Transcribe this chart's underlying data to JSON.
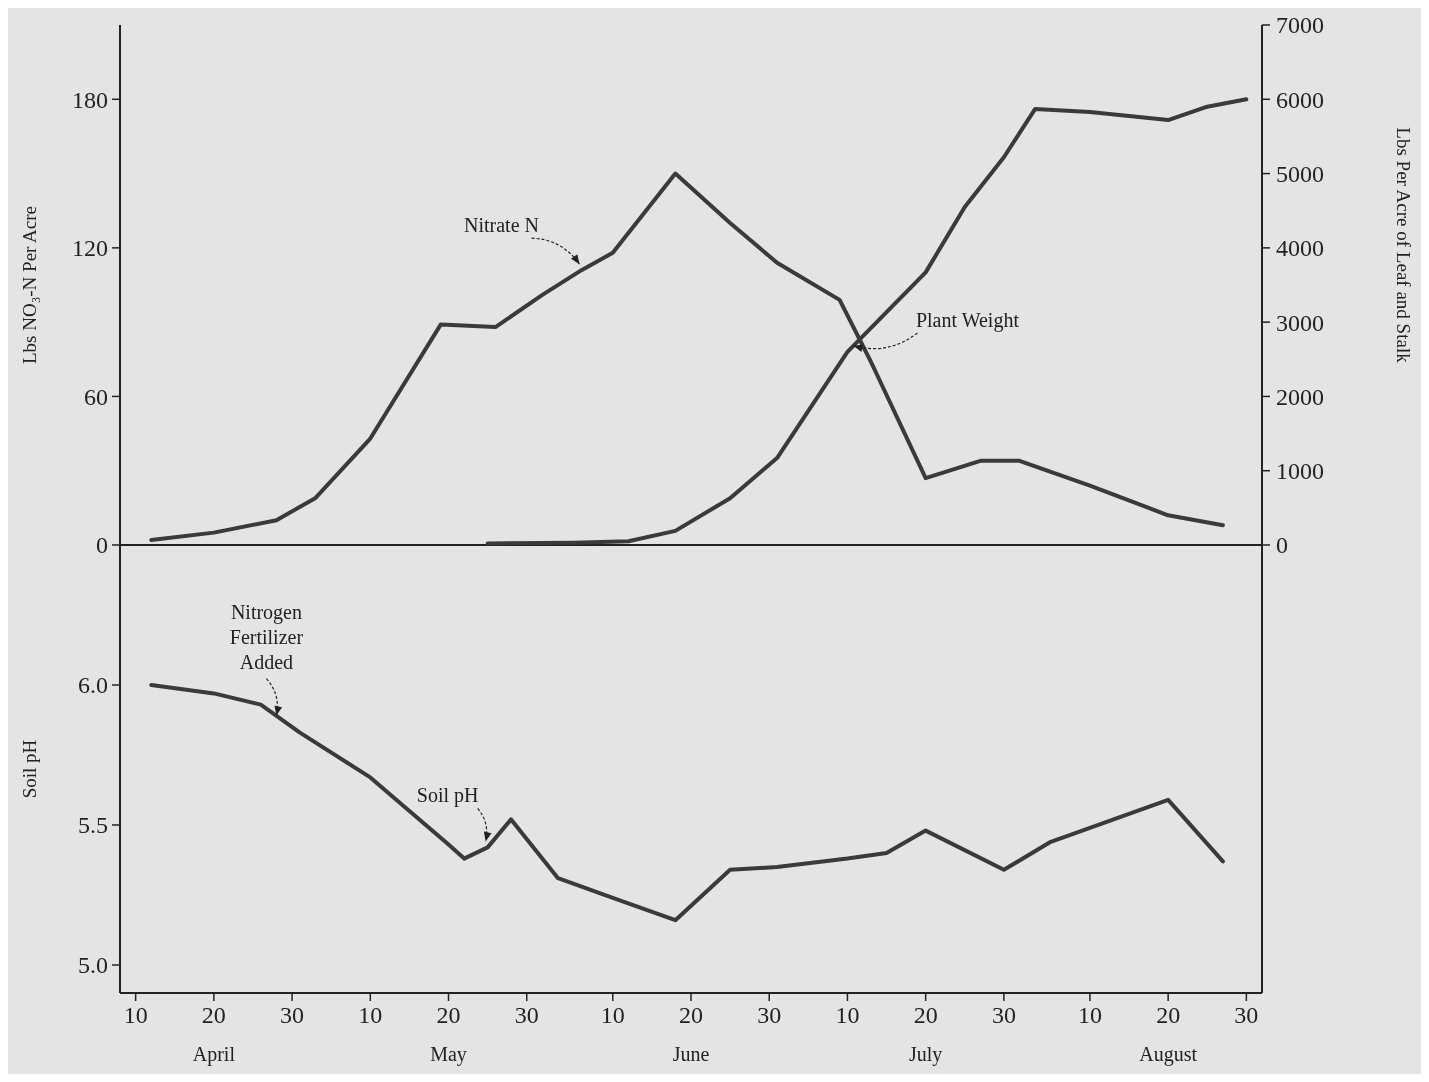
{
  "chart_data": [
    {
      "type": "line",
      "ylabel": "Lbs NO₃-N Per Acre",
      "y2label": "Lbs Per Acre of Leaf and Stalk",
      "xlim": [
        "--04-08",
        "--09-01"
      ],
      "ylim": [
        0,
        210
      ],
      "yticks": [
        0,
        60,
        120,
        180
      ],
      "y2lim": [
        0,
        7000
      ],
      "y2ticks": [
        0,
        1000,
        2000,
        3000,
        4000,
        5000,
        6000,
        7000
      ],
      "tick_labels": "y",
      "grid": false,
      "marker": "none",
      "line_style": "solid",
      "series": [
        {
          "name": "Nitrate N",
          "color": "#3a3a3a",
          "axis": "y",
          "x": [
            "--04-12",
            "--04-20",
            "--04-28",
            "--05-03",
            "--05-10",
            "--05-19",
            "--05-26",
            "--06-01",
            "--06-06",
            "--06-10",
            "--06-18",
            "--06-25",
            "--07-01",
            "--07-09",
            "--07-13",
            "--07-20",
            "--07-27",
            "--08-01",
            "--08-10",
            "--08-20",
            "--08-27"
          ],
          "values": [
            2,
            5,
            10,
            19,
            43,
            89,
            88,
            101,
            111,
            118,
            150,
            130,
            114,
            99,
            74,
            27,
            34,
            34,
            24,
            12,
            8
          ]
        },
        {
          "name": "Plant Weight",
          "color": "#3a3a3a",
          "axis": "y2",
          "x": [
            "--05-25",
            "--06-05",
            "--06-12",
            "--06-18",
            "--06-25",
            "--07-01",
            "--07-10",
            "--07-20",
            "--07-25",
            "--07-30",
            "--08-03",
            "--08-10",
            "--08-20",
            "--08-25",
            "--08-30"
          ],
          "values": [
            20,
            30,
            50,
            190,
            630,
            1170,
            2600,
            3670,
            4550,
            5220,
            5870,
            5830,
            5720,
            5900,
            6000
          ]
        }
      ]
    },
    {
      "type": "line",
      "ylabel": "Soil pH",
      "xlim": [
        "--04-08",
        "--09-01"
      ],
      "xticks": [
        {
          "value": "--04-10",
          "label": "10"
        },
        {
          "value": "--04-20",
          "label": "20\nApril"
        },
        {
          "value": "--04-30",
          "label": "30"
        },
        {
          "value": "--05-10",
          "label": "10"
        },
        {
          "value": "--05-20",
          "label": "20\nMay"
        },
        {
          "value": "--05-30",
          "label": "30"
        },
        {
          "value": "--06-10",
          "label": "10"
        },
        {
          "value": "--06-20",
          "label": "20\nJune"
        },
        {
          "value": "--06-30",
          "label": "30"
        },
        {
          "value": "--07-10",
          "label": "10"
        },
        {
          "value": "--07-20",
          "label": "20\nJuly"
        },
        {
          "value": "--07-30",
          "label": "30"
        },
        {
          "value": "--08-10",
          "label": "10"
        },
        {
          "value": "--08-20",
          "label": "20\nAugust"
        },
        {
          "value": "--08-30",
          "label": "30"
        }
      ],
      "ylim": [
        4.9,
        6.5
      ],
      "yticks": [
        {
          "value": 5,
          "label": "5.0"
        },
        5.5,
        {
          "value": 6,
          "label": "6.0"
        }
      ],
      "grid": false,
      "marker": "none",
      "line_style": "solid",
      "annotations": [
        {
          "text": "Nitrogen Fertilizer Added",
          "x": "--04-28",
          "y": 5.88
        }
      ],
      "series": [
        {
          "name": "Soil pH",
          "color": "#3a3a3a",
          "x": [
            "--04-12",
            "--04-20",
            "--04-26",
            "--05-01",
            "--05-10",
            "--05-15",
            "--05-20",
            "--05-22",
            "--05-25",
            "--05-28",
            "--06-03",
            "--06-10",
            "--06-18",
            "--06-25",
            "--07-01",
            "--07-10",
            "--07-15",
            "--07-20",
            "--07-30",
            "--08-05",
            "--08-20",
            "--08-27"
          ],
          "values": [
            6.0,
            5.97,
            5.93,
            5.83,
            5.67,
            5.55,
            5.43,
            5.38,
            5.42,
            5.52,
            5.31,
            5.24,
            5.16,
            5.34,
            5.35,
            5.38,
            5.4,
            5.48,
            5.34,
            5.44,
            5.59,
            5.37
          ]
        }
      ]
    }
  ]
}
